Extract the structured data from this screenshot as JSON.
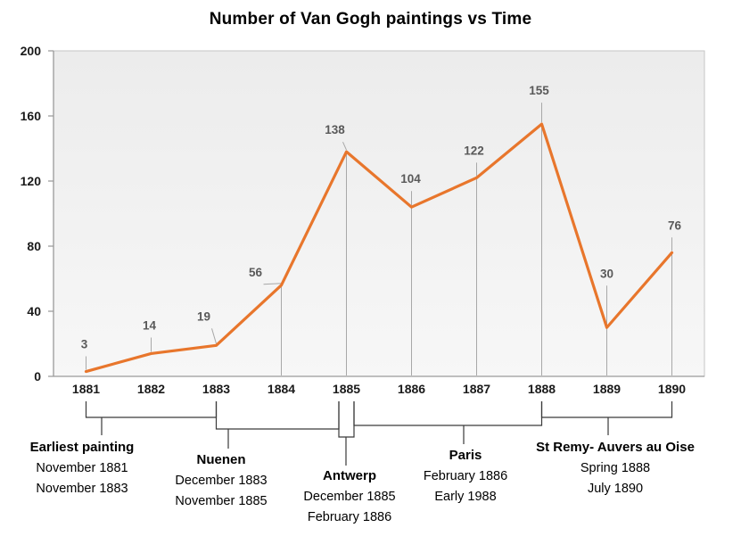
{
  "title": "Number of Van Gogh paintings vs Time",
  "chart_data": {
    "type": "line",
    "title": "Number of Van Gogh paintings vs Time",
    "x": [
      1881,
      1882,
      1883,
      1884,
      1885,
      1886,
      1887,
      1888,
      1889,
      1890
    ],
    "values": [
      3,
      14,
      19,
      56,
      138,
      104,
      122,
      155,
      30,
      76
    ],
    "ylim": [
      0,
      200
    ],
    "yticks": [
      0,
      40,
      80,
      120,
      160,
      200
    ],
    "grid": false,
    "legend": "none",
    "line_color": "#E8762C",
    "label_color": "#595959",
    "axis_text_color": "#1a1a1a",
    "plot_bg_top": "#ececec",
    "plot_bg_bottom": "#f7f7f7",
    "annotations": [
      {
        "label": "Earliest painting",
        "lines": [
          "November 1881",
          "November 1883"
        ],
        "from": 1881,
        "to": 1883
      },
      {
        "label": "Nuenen",
        "lines": [
          "December 1883",
          "November 1885"
        ],
        "from": 1883,
        "to": 1885
      },
      {
        "label": "Antwerp",
        "lines": [
          "December 1885",
          "February 1886"
        ],
        "from": 1885,
        "to": 1885
      },
      {
        "label": "Paris",
        "lines": [
          "February 1886",
          "Early 1988"
        ],
        "from": 1885,
        "to": 1888
      },
      {
        "label": "St Remy- Auvers au Oise",
        "lines": [
          "Spring 1888",
          "July 1890"
        ],
        "from": 1888,
        "to": 1890
      }
    ]
  }
}
